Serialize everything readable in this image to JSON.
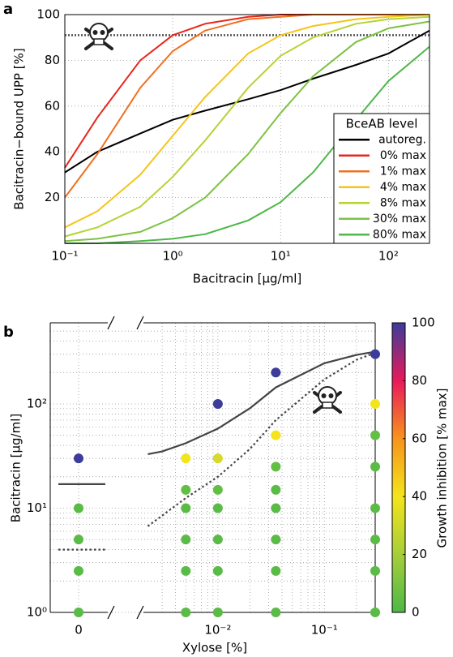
{
  "chart_data": [
    {
      "type": "line",
      "panel_label": "a",
      "xlabel": "Bacitracin [μg/ml]",
      "ylabel": "Bacitracin−bound UPP [%]",
      "xscale": "log",
      "xlim": [
        0.1,
        240
      ],
      "ylim": [
        0,
        100
      ],
      "xticks": [
        {
          "value": 0.1,
          "label": "10⁻¹"
        },
        {
          "value": 1,
          "label": "10⁰"
        },
        {
          "value": 10,
          "label": "10¹"
        },
        {
          "value": 100,
          "label": "10²"
        }
      ],
      "yticks": [
        20,
        40,
        60,
        80,
        100
      ],
      "grid": true,
      "hline": 91,
      "legend_title": "BceAB level",
      "legend": "lower right",
      "x": [
        0.1,
        0.2,
        0.5,
        1,
        2,
        5,
        10,
        20,
        50,
        100,
        240
      ],
      "series": [
        {
          "name": "autoreg.",
          "color": "#000000",
          "values": [
            31,
            40,
            48,
            54,
            58,
            63,
            67,
            72,
            78,
            83,
            93
          ]
        },
        {
          "name": "0% max",
          "color": "#e8261c",
          "values": [
            33,
            55,
            80,
            91,
            96,
            99,
            100,
            100,
            100,
            100,
            100
          ]
        },
        {
          "name": "1% max",
          "color": "#f07020",
          "values": [
            20,
            39,
            68,
            84,
            93,
            98,
            99,
            100,
            100,
            100,
            100
          ]
        },
        {
          "name": "4% max",
          "color": "#f5c518",
          "values": [
            7,
            14,
            30,
            47,
            64,
            83,
            91,
            95,
            98,
            99,
            100
          ]
        },
        {
          "name": "8% max",
          "color": "#b5d334",
          "values": [
            3,
            7,
            16,
            29,
            45,
            68,
            82,
            90,
            96,
            98,
            99
          ]
        },
        {
          "name": "30% max",
          "color": "#7cc242",
          "values": [
            1,
            2,
            5,
            11,
            20,
            39,
            57,
            73,
            88,
            94,
            97
          ]
        },
        {
          "name": "80% max",
          "color": "#4cb848",
          "values": [
            0,
            0,
            1,
            2,
            4,
            10,
            18,
            31,
            54,
            71,
            86
          ]
        }
      ]
    },
    {
      "type": "scatter",
      "panel_label": "b",
      "xlabel": "Xylose [%]",
      "ylabel": "Bacitracin [μg/ml]",
      "xscale": "log",
      "yscale": "log",
      "xlim": [
        0.002,
        0.3
      ],
      "ylim": [
        1,
        600
      ],
      "xticks": [
        0,
        {
          "value": 0.01,
          "label": "10⁻²"
        },
        {
          "value": 0.1,
          "label": "10⁻¹"
        }
      ],
      "yticks": [
        {
          "value": 1,
          "label": "10⁰"
        },
        {
          "value": 10,
          "label": "10¹"
        },
        {
          "value": 100,
          "label": "10²"
        }
      ],
      "grid": true,
      "x": [
        0,
        0,
        0,
        0,
        0,
        0.005,
        0.005,
        0.005,
        0.005,
        0.005,
        0.005,
        0.01,
        0.01,
        0.01,
        0.01,
        0.01,
        0.01,
        0.01,
        0.035,
        0.035,
        0.035,
        0.035,
        0.035,
        0.035,
        0.035,
        0.035,
        0.3,
        0.3,
        0.3,
        0.3,
        0.3,
        0.3,
        0.3,
        0.3
      ],
      "values": [
        1,
        2.5,
        5,
        10,
        30,
        1,
        2.5,
        5,
        10,
        15,
        30,
        1,
        2.5,
        5,
        10,
        15,
        30,
        100,
        1,
        2.5,
        5,
        10,
        15,
        25,
        50,
        200,
        1,
        2.5,
        5,
        10,
        25,
        50,
        100,
        300
      ],
      "color_values": [
        3,
        3,
        3,
        3,
        100,
        3,
        3,
        3,
        3,
        5,
        40,
        3,
        3,
        3,
        3,
        5,
        32,
        100,
        3,
        3,
        3,
        3,
        3,
        5,
        40,
        100,
        3,
        3,
        3,
        3,
        3,
        5,
        40,
        100
      ],
      "clim": [
        0,
        100
      ],
      "cticks": [
        0,
        20,
        40,
        60,
        80,
        100
      ],
      "colorbar_label": "Growth inhibition [% max]",
      "colormap": [
        "#4db848",
        "#a6ce39",
        "#f4e41c",
        "#f7941d",
        "#e8195a",
        "#3c3c9a"
      ],
      "lines": [
        {
          "style": "solid",
          "color": "#444444",
          "zero_value": 17,
          "x": [
            0.0022,
            0.003,
            0.005,
            0.01,
            0.02,
            0.035,
            0.1,
            0.2,
            0.3
          ],
          "values": [
            33,
            35,
            42,
            58,
            91,
            144,
            246,
            295,
            317
          ]
        },
        {
          "style": "dotted",
          "color": "#444444",
          "zero_value": 4,
          "x": [
            0.0022,
            0.005,
            0.01,
            0.02,
            0.035,
            0.1,
            0.2,
            0.3
          ],
          "values": [
            6.7,
            12.5,
            20,
            37,
            70,
            172,
            265,
            310
          ]
        }
      ]
    }
  ]
}
